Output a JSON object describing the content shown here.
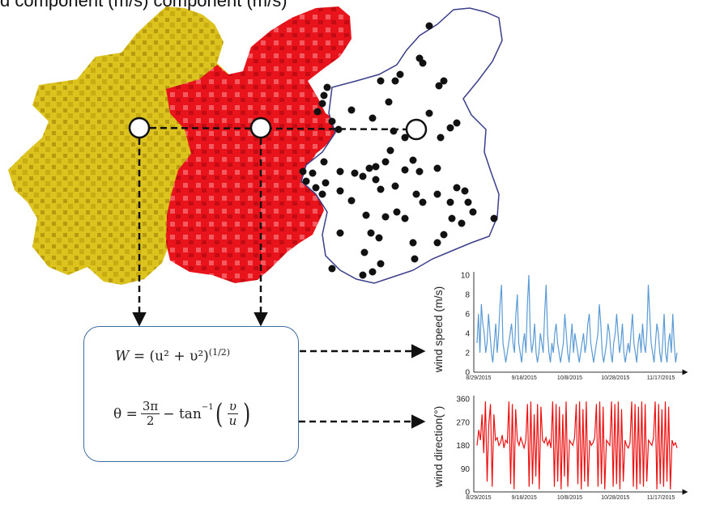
{
  "header": {
    "text": "d component (m/s)       component (m/s)"
  },
  "formulas": {
    "speed_lhs": "W",
    "speed_rhs": "= (u² + υ²)",
    "speed_exp": "(1/2)",
    "dir_lhs": "θ =",
    "dir_num": "3π",
    "dir_den": "2",
    "dir_mid": "− tan",
    "dir_inv": "−1",
    "dir_frac_num": "υ",
    "dir_frac_den": "u"
  },
  "colors": {
    "yellow_region": "#d9bd1a",
    "red_region": "#e8131b",
    "speed_line": "#5b9bd5",
    "direction_line": "#ee1111",
    "box_border": "#3d6b9e"
  },
  "chart_data": [
    {
      "type": "line",
      "ylabel": "wind speed (m/s)",
      "ylim": [
        0,
        10
      ],
      "yticks": [
        "0",
        "2",
        "4",
        "6",
        "8",
        "10"
      ],
      "xticks": [
        "8/29/2015",
        "9/18/2015",
        "10/8/2015",
        "10/28/2015",
        "11/17/2015"
      ],
      "x_start": "8/29/2015",
      "x_end": "12/7/2015",
      "series": [
        {
          "color": "#5b9bd5",
          "values": [
            3,
            6,
            2,
            7,
            5,
            4,
            2,
            3,
            6,
            4,
            2,
            1,
            3,
            5,
            2,
            4,
            7,
            9,
            3,
            2,
            1,
            2,
            3,
            4,
            5,
            3,
            2,
            6,
            8,
            3,
            2,
            1,
            3,
            4,
            2,
            7,
            10,
            4,
            2,
            3,
            5,
            2,
            1,
            2,
            4,
            3,
            2,
            6,
            9,
            4,
            2,
            1,
            3,
            2,
            4,
            5,
            3,
            2,
            1,
            2,
            3,
            6,
            4,
            2,
            1,
            3,
            5,
            2,
            4,
            3,
            2,
            1,
            2,
            3,
            4,
            2,
            3,
            5,
            6,
            3,
            2,
            1,
            2,
            3,
            4,
            7,
            5,
            2,
            1,
            2,
            3,
            5,
            4,
            2,
            1,
            3,
            4,
            6,
            4,
            2,
            3,
            5,
            2,
            1,
            2,
            3,
            2,
            4,
            6,
            3,
            2,
            1,
            3,
            4,
            2,
            5,
            3,
            2,
            4,
            9,
            6,
            3,
            2,
            1,
            3,
            5,
            4,
            2,
            1,
            3,
            6,
            2,
            1,
            3,
            4,
            2,
            6,
            3,
            1,
            2
          ]
        }
      ]
    },
    {
      "type": "line",
      "ylabel": "wind direction(°)",
      "ylim": [
        0,
        360
      ],
      "yticks": [
        "0",
        "90",
        "180",
        "270",
        "360"
      ],
      "xticks": [
        "8/29/2015",
        "9/18/2015",
        "10/8/2015",
        "10/28/2015",
        "11/17/2015"
      ],
      "x_start": "8/29/2015",
      "x_end": "12/7/2015",
      "series": [
        {
          "color": "#ee1111",
          "values": [
            180,
            240,
            200,
            300,
            150,
            350,
            40,
            260,
            340,
            20,
            300,
            200,
            210,
            180,
            190,
            220,
            170,
            200,
            190,
            350,
            30,
            340,
            10,
            320,
            200,
            180,
            210,
            190,
            170,
            200,
            340,
            20,
            350,
            30,
            300,
            60,
            340,
            10,
            330,
            200,
            190,
            210,
            180,
            200,
            170,
            350,
            20,
            340,
            40,
            330,
            10,
            300,
            60,
            350,
            20,
            200,
            190,
            180,
            210,
            340,
            30,
            350,
            10,
            320,
            40,
            350,
            20,
            200,
            180,
            190,
            210,
            340,
            20,
            350,
            30,
            330,
            10,
            200,
            190,
            180,
            350,
            20,
            340,
            30,
            350,
            10,
            320,
            40,
            200,
            180,
            170,
            190,
            350,
            20,
            340,
            10,
            330,
            30,
            350,
            20,
            340,
            40,
            200,
            190,
            180,
            210,
            350,
            10,
            340,
            30,
            320,
            20,
            350,
            40,
            330,
            10,
            200,
            180,
            190,
            170
          ]
        }
      ]
    }
  ]
}
